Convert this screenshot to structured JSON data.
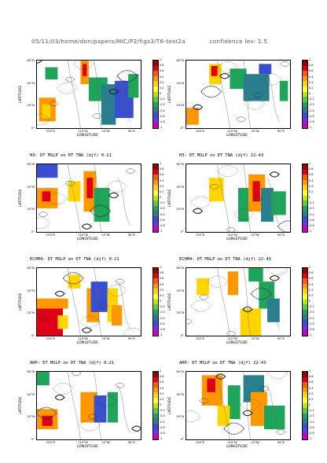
{
  "header": {
    "path": "05/11/03/home/don/papers/MIC/P2/figs3/T6-test2a",
    "confidence": "confidence lev: 1.5"
  },
  "axis": {
    "ylabel": "LATITUDE",
    "xlabel": "LONGITUDE",
    "yticks": [
      "60°N",
      "40°N",
      "20°N",
      "0°"
    ],
    "xticks": [
      "150°E",
      "110°W",
      "10°W",
      "90°E"
    ]
  },
  "colorbar": {
    "ticks": [
      "1",
      "0.8",
      "0.6",
      "0.4",
      "0.3",
      "0.2",
      "0",
      "-0.2",
      "-0.3",
      "-0.4",
      "-0.6",
      "-0.8",
      "-1"
    ],
    "colors": [
      "#9b0000",
      "#e0001a",
      "#ff5a00",
      "#ff9800",
      "#ffd400",
      "#ffff33",
      "#bfe600",
      "#5fc84a",
      "#1fa55a",
      "#2a7f8f",
      "#3a4fd0",
      "#7b2fe0",
      "#c800c8"
    ]
  },
  "panels": [
    {
      "caption": "",
      "col": 0,
      "row": 0
    },
    {
      "caption": "",
      "col": 1,
      "row": 0
    },
    {
      "caption": "H3: DT MSLP on DT TNA (djf) 0-21",
      "col": 0,
      "row": 1
    },
    {
      "caption": "H3: DT MSLP on DT TNA (djf) 22-43",
      "col": 1,
      "row": 1
    },
    {
      "caption": "ECHM4: DT MSLP on DT TNA (djf) 0-21",
      "col": 0,
      "row": 2
    },
    {
      "caption": "ECHM4: DT MSLP on DT TNA (djf) 22-43",
      "col": 1,
      "row": 2
    },
    {
      "caption": "ARP: DT MSLP on DT TNA (djf) 0-21",
      "col": 0,
      "row": 3
    },
    {
      "caption": "ARP: DT MSLP on DT TNA (djf) 22-43",
      "col": 1,
      "row": 3
    }
  ]
}
